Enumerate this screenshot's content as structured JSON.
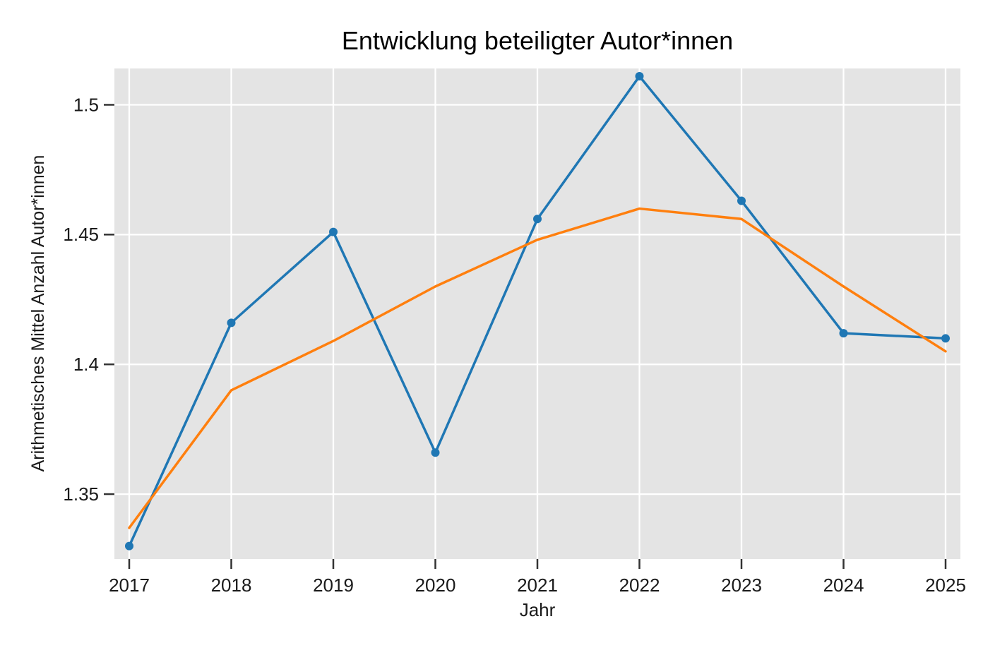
{
  "chart_data": {
    "type": "line",
    "title": "Entwicklung beteiligter Autor*innen",
    "xlabel": "Jahr",
    "ylabel": "Arithmetisches Mittel Anzahl Autor*innen",
    "x": [
      2017,
      2018,
      2019,
      2020,
      2021,
      2022,
      2023,
      2024,
      2025
    ],
    "series": [
      {
        "name": "series-blue-yearly-mean",
        "color": "#1f77b4",
        "marker": "circle",
        "marker_radius": 6,
        "values": [
          1.33,
          1.416,
          1.451,
          1.366,
          1.456,
          1.511,
          1.463,
          1.412,
          1.41
        ]
      },
      {
        "name": "series-orange-smoothed-trend",
        "color": "#ff7f0e",
        "marker": "none",
        "marker_radius": 0,
        "values": [
          1.337,
          1.39,
          1.409,
          1.43,
          1.448,
          1.46,
          1.456,
          1.43,
          1.405
        ]
      }
    ],
    "xticks": [
      "2017",
      "2018",
      "2019",
      "2020",
      "2021",
      "2022",
      "2023",
      "2024",
      "2025"
    ],
    "yticks": [
      1.35,
      1.4,
      1.45,
      1.5
    ],
    "ytick_labels": [
      "1.35",
      "1.4",
      "1.45",
      "1.5"
    ],
    "ylim": [
      1.325,
      1.514
    ],
    "grid": "major white gridlines on gray panel",
    "legend": "none"
  },
  "style": {
    "panel_background": "#e4e4e4",
    "gridline_color": "#ffffff",
    "tick_mark_color": "#333333",
    "text_color": "#1a1a1a",
    "page_background": "#ffffff"
  }
}
